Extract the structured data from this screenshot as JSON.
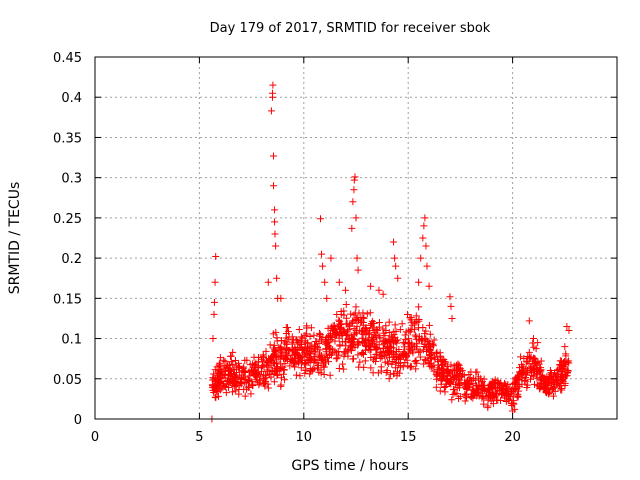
{
  "chart_data": {
    "type": "scatter",
    "title": "Day 179 of 2017, SRMTID for receiver sbok",
    "xlabel": "GPS time / hours",
    "ylabel": "SRMTID / TECUs",
    "xlim": [
      0,
      25
    ],
    "ylim": [
      0,
      0.45
    ],
    "x_ticks": [
      0,
      5,
      10,
      15,
      20
    ],
    "x_tick_labels": [
      "0",
      "5",
      "10",
      "15",
      "20"
    ],
    "y_ticks": [
      0,
      0.05,
      0.1,
      0.15,
      0.2,
      0.25,
      0.3,
      0.35,
      0.4,
      0.45
    ],
    "y_tick_labels": [
      "0",
      "0.05",
      "0.1",
      "0.15",
      "0.2",
      "0.25",
      "0.3",
      "0.35",
      "0.4",
      "0.45"
    ],
    "grid": true,
    "marker": "+",
    "color": "#ff0000",
    "series": [
      {
        "name": "SRMTID",
        "envelope": [
          {
            "x": 5.6,
            "center": 0.04,
            "spread": 0.015
          },
          {
            "x": 6.0,
            "center": 0.055,
            "spread": 0.02
          },
          {
            "x": 6.5,
            "center": 0.055,
            "spread": 0.02
          },
          {
            "x": 7.0,
            "center": 0.05,
            "spread": 0.02
          },
          {
            "x": 7.5,
            "center": 0.055,
            "spread": 0.02
          },
          {
            "x": 8.0,
            "center": 0.06,
            "spread": 0.02
          },
          {
            "x": 8.5,
            "center": 0.07,
            "spread": 0.025
          },
          {
            "x": 9.0,
            "center": 0.08,
            "spread": 0.03
          },
          {
            "x": 9.5,
            "center": 0.08,
            "spread": 0.025
          },
          {
            "x": 10.0,
            "center": 0.085,
            "spread": 0.025
          },
          {
            "x": 10.5,
            "center": 0.08,
            "spread": 0.025
          },
          {
            "x": 11.0,
            "center": 0.085,
            "spread": 0.03
          },
          {
            "x": 11.5,
            "center": 0.1,
            "spread": 0.03
          },
          {
            "x": 12.0,
            "center": 0.105,
            "spread": 0.03
          },
          {
            "x": 12.5,
            "center": 0.11,
            "spread": 0.03
          },
          {
            "x": 13.0,
            "center": 0.1,
            "spread": 0.03
          },
          {
            "x": 13.5,
            "center": 0.09,
            "spread": 0.03
          },
          {
            "x": 14.0,
            "center": 0.085,
            "spread": 0.03
          },
          {
            "x": 14.5,
            "center": 0.08,
            "spread": 0.03
          },
          {
            "x": 15.0,
            "center": 0.09,
            "spread": 0.03
          },
          {
            "x": 15.5,
            "center": 0.1,
            "spread": 0.03
          },
          {
            "x": 16.0,
            "center": 0.09,
            "spread": 0.03
          },
          {
            "x": 16.5,
            "center": 0.06,
            "spread": 0.02
          },
          {
            "x": 17.0,
            "center": 0.05,
            "spread": 0.02
          },
          {
            "x": 17.5,
            "center": 0.045,
            "spread": 0.02
          },
          {
            "x": 18.0,
            "center": 0.04,
            "spread": 0.015
          },
          {
            "x": 18.5,
            "center": 0.035,
            "spread": 0.015
          },
          {
            "x": 19.0,
            "center": 0.035,
            "spread": 0.015
          },
          {
            "x": 19.5,
            "center": 0.035,
            "spread": 0.015
          },
          {
            "x": 20.0,
            "center": 0.03,
            "spread": 0.015
          },
          {
            "x": 20.5,
            "center": 0.06,
            "spread": 0.02
          },
          {
            "x": 21.0,
            "center": 0.07,
            "spread": 0.025
          },
          {
            "x": 21.5,
            "center": 0.045,
            "spread": 0.015
          },
          {
            "x": 22.0,
            "center": 0.045,
            "spread": 0.015
          },
          {
            "x": 22.5,
            "center": 0.06,
            "spread": 0.02
          },
          {
            "x": 22.7,
            "center": 0.06,
            "spread": 0.02
          }
        ],
        "highlights": [
          {
            "x": 5.6,
            "y": 0.0
          },
          {
            "x": 5.65,
            "y": 0.1
          },
          {
            "x": 5.7,
            "y": 0.13
          },
          {
            "x": 5.72,
            "y": 0.145
          },
          {
            "x": 5.75,
            "y": 0.17
          },
          {
            "x": 5.78,
            "y": 0.202
          },
          {
            "x": 8.45,
            "y": 0.383
          },
          {
            "x": 8.5,
            "y": 0.4
          },
          {
            "x": 8.5,
            "y": 0.405
          },
          {
            "x": 8.52,
            "y": 0.415
          },
          {
            "x": 8.55,
            "y": 0.327
          },
          {
            "x": 8.55,
            "y": 0.29
          },
          {
            "x": 8.6,
            "y": 0.26
          },
          {
            "x": 8.6,
            "y": 0.245
          },
          {
            "x": 8.62,
            "y": 0.23
          },
          {
            "x": 8.65,
            "y": 0.215
          },
          {
            "x": 8.7,
            "y": 0.175
          },
          {
            "x": 8.75,
            "y": 0.15
          },
          {
            "x": 8.3,
            "y": 0.17
          },
          {
            "x": 8.9,
            "y": 0.15
          },
          {
            "x": 10.8,
            "y": 0.249
          },
          {
            "x": 10.85,
            "y": 0.205
          },
          {
            "x": 10.9,
            "y": 0.19
          },
          {
            "x": 11.0,
            "y": 0.17
          },
          {
            "x": 11.1,
            "y": 0.15
          },
          {
            "x": 11.3,
            "y": 0.2
          },
          {
            "x": 11.7,
            "y": 0.17
          },
          {
            "x": 12.0,
            "y": 0.16
          },
          {
            "x": 12.3,
            "y": 0.237
          },
          {
            "x": 12.35,
            "y": 0.27
          },
          {
            "x": 12.4,
            "y": 0.285
          },
          {
            "x": 12.42,
            "y": 0.297
          },
          {
            "x": 12.45,
            "y": 0.301
          },
          {
            "x": 12.5,
            "y": 0.25
          },
          {
            "x": 12.55,
            "y": 0.2
          },
          {
            "x": 12.6,
            "y": 0.185
          },
          {
            "x": 13.2,
            "y": 0.165
          },
          {
            "x": 13.6,
            "y": 0.16
          },
          {
            "x": 13.8,
            "y": 0.155
          },
          {
            "x": 14.3,
            "y": 0.22
          },
          {
            "x": 14.35,
            "y": 0.2
          },
          {
            "x": 14.4,
            "y": 0.19
          },
          {
            "x": 14.5,
            "y": 0.175
          },
          {
            "x": 15.5,
            "y": 0.17
          },
          {
            "x": 15.6,
            "y": 0.2
          },
          {
            "x": 15.7,
            "y": 0.225
          },
          {
            "x": 15.75,
            "y": 0.24
          },
          {
            "x": 15.8,
            "y": 0.25
          },
          {
            "x": 15.85,
            "y": 0.215
          },
          {
            "x": 15.9,
            "y": 0.19
          },
          {
            "x": 16.0,
            "y": 0.165
          },
          {
            "x": 17.0,
            "y": 0.152
          },
          {
            "x": 17.05,
            "y": 0.14
          },
          {
            "x": 17.1,
            "y": 0.125
          },
          {
            "x": 20.8,
            "y": 0.122
          },
          {
            "x": 21.0,
            "y": 0.1
          },
          {
            "x": 21.2,
            "y": 0.095
          },
          {
            "x": 22.6,
            "y": 0.115
          },
          {
            "x": 22.7,
            "y": 0.11
          },
          {
            "x": 22.5,
            "y": 0.09
          },
          {
            "x": 20.0,
            "y": 0.01
          },
          {
            "x": 20.1,
            "y": 0.012
          }
        ]
      }
    ]
  }
}
